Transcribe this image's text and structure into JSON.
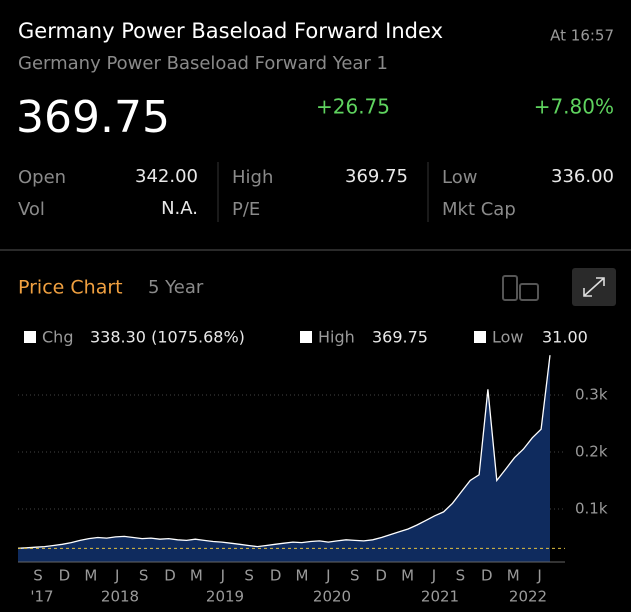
{
  "header": {
    "title": "Germany Power Baseload Forward Index",
    "time": "At 16:57",
    "subtitle": "Germany Power Baseload Forward Year 1",
    "price": "369.75",
    "change": "+26.75",
    "change_pct": "+7.80%"
  },
  "stats": [
    [
      {
        "label": "Open",
        "value": "342.00"
      },
      {
        "label": "High",
        "value": "369.75"
      },
      {
        "label": "Low",
        "value": "336.00"
      }
    ],
    [
      {
        "label": "Vol",
        "value": "N.A."
      },
      {
        "label": "P/E",
        "value": ""
      },
      {
        "label": "Mkt Cap",
        "value": ""
      }
    ]
  ],
  "chart_header": {
    "title": "Price Chart",
    "period": "5 Year"
  },
  "chart_data": {
    "type": "area",
    "legend": [
      {
        "name": "Chg",
        "text": "338.30 (1075.68%)"
      },
      {
        "name": "High",
        "text": "369.75"
      },
      {
        "name": "Low",
        "text": "31.00"
      }
    ],
    "values": [
      31,
      32,
      33,
      34,
      36,
      38,
      41,
      45,
      48,
      50,
      49,
      51,
      52,
      50,
      48,
      49,
      47,
      48,
      46,
      45,
      47,
      45,
      43,
      42,
      40,
      38,
      36,
      34,
      36,
      38,
      40,
      42,
      41,
      43,
      44,
      42,
      44,
      46,
      45,
      44,
      46,
      50,
      55,
      60,
      65,
      72,
      80,
      88,
      95,
      110,
      130,
      150,
      160,
      310,
      150,
      170,
      190,
      205,
      225,
      240,
      369.75
    ],
    "low_line": 31,
    "ylim": [
      0,
      380
    ],
    "yticks": [
      {
        "value": 100,
        "label": "0.1k"
      },
      {
        "value": 200,
        "label": "0.2k"
      },
      {
        "value": 300,
        "label": "0.3k"
      }
    ],
    "xtick_labels": [
      "S",
      "D",
      "M",
      "J",
      "S",
      "D",
      "M",
      "J",
      "S",
      "D",
      "M",
      "J",
      "S",
      "D",
      "M",
      "J",
      "S",
      "D",
      "M",
      "J"
    ],
    "year_labels": [
      "'17",
      "2018",
      "2019",
      "2020",
      "2021",
      "2022"
    ],
    "line_color": "#ffffff",
    "fill_color": "#0f2b5e",
    "low_color": "#e0c040"
  }
}
